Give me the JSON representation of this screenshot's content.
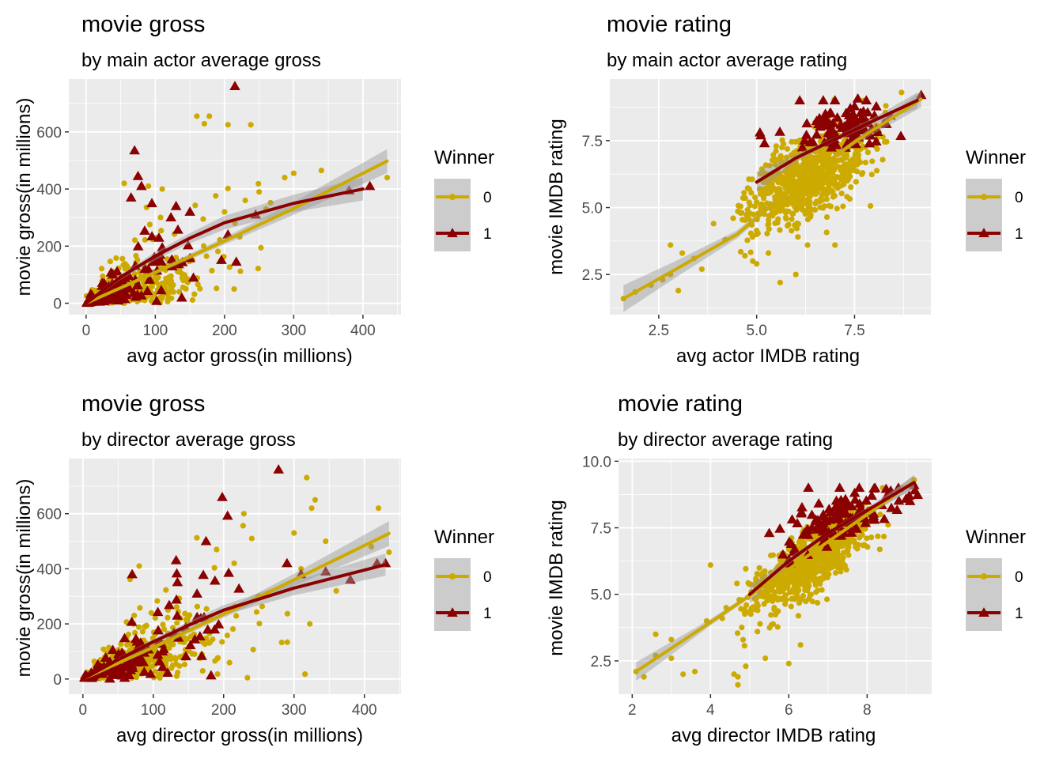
{
  "colors": {
    "winner_0": "#CCAA00",
    "winner_1": "#8B0000",
    "panel_bg": "#EBEBEB",
    "grid": "#FFFFFF",
    "band": "#999999",
    "legend_key_bg": "#CCCCCC"
  },
  "chart_data": [
    {
      "type": "scatter",
      "title": "movie gross",
      "subtitle": "by main actor average gross",
      "xlabel": "avg actor gross(in millions)",
      "ylabel": "movie gross(in millions)",
      "xlim": [
        -25,
        455
      ],
      "ylim": [
        -40,
        785
      ],
      "xticks": [
        0,
        100,
        200,
        300,
        400
      ],
      "xtick_labels": [
        "0",
        "100",
        "200",
        "300",
        "400"
      ],
      "yticks": [
        0,
        200,
        400,
        600
      ],
      "ytick_labels": [
        "0",
        "200",
        "400",
        "600"
      ],
      "legend": {
        "title": "Winner",
        "entries": [
          "0",
          "1"
        ],
        "position": "right"
      },
      "series": [
        {
          "name": "0",
          "marker": "circle",
          "cluster": {
            "n": 560,
            "x_shape": 1.3,
            "x_scale": 45,
            "y_ratio": 0.95,
            "y_sd": 0.65,
            "x_max": 300
          },
          "points": [
            [
              160,
              655
            ],
            [
              178,
              655
            ],
            [
              205,
              625
            ],
            [
              238,
              625
            ],
            [
              300,
              455
            ],
            [
              340,
              465
            ],
            [
              435,
              440
            ],
            [
              90,
              410
            ],
            [
              110,
              400
            ],
            [
              55,
              420
            ],
            [
              250,
              390
            ],
            [
              260,
              330
            ],
            [
              200,
              320
            ],
            [
              215,
              280
            ],
            [
              230,
              360
            ]
          ],
          "trend": [
            [
              0,
              0
            ],
            [
              100,
              108
            ],
            [
              200,
              218
            ],
            [
              300,
              332
            ],
            [
              435,
              498
            ]
          ],
          "band_width": [
            5,
            8,
            12,
            22,
            42
          ]
        },
        {
          "name": "1",
          "marker": "triangle",
          "cluster": {
            "n": 110,
            "x_shape": 1.4,
            "x_scale": 40,
            "y_ratio": 1.3,
            "y_sd": 0.7,
            "x_max": 230
          },
          "points": [
            [
              215,
              760
            ],
            [
              70,
              535
            ],
            [
              75,
              445
            ],
            [
              80,
              410
            ],
            [
              65,
              370
            ],
            [
              95,
              350
            ],
            [
              130,
              340
            ],
            [
              205,
              240
            ],
            [
              245,
              310
            ],
            [
              410,
              410
            ],
            [
              380,
              395
            ],
            [
              150,
              320
            ]
          ],
          "trend": [
            [
              0,
              0
            ],
            [
              50,
              92
            ],
            [
              100,
              165
            ],
            [
              150,
              228
            ],
            [
              200,
              282
            ],
            [
              300,
              350
            ],
            [
              400,
              400
            ]
          ],
          "band_width": [
            6,
            10,
            14,
            18,
            24,
            30,
            40
          ]
        }
      ]
    },
    {
      "type": "scatter",
      "title": "movie rating",
      "subtitle": "by main actor average rating",
      "xlabel": "avg actor IMDB rating",
      "ylabel": "movie IMDB rating",
      "xlim": [
        1.25,
        9.45
      ],
      "ylim": [
        1.0,
        9.8
      ],
      "xticks": [
        2.5,
        5.0,
        7.5
      ],
      "xtick_labels": [
        "2.5",
        "5.0",
        "7.5"
      ],
      "yticks": [
        2.5,
        5.0,
        7.5
      ],
      "ytick_labels": [
        "2.5",
        "5.0",
        "7.5"
      ],
      "legend": {
        "title": "Winner",
        "entries": [
          "0",
          "1"
        ],
        "position": "right"
      },
      "series": [
        {
          "name": "0",
          "marker": "circle",
          "cluster": {
            "n": 780,
            "cx": 6.35,
            "cy": 6.2,
            "sx": 0.75,
            "sy": 0.9,
            "rho": 0.55,
            "x_min": 4.5,
            "y_max": 9.3
          },
          "points": [
            [
              1.6,
              1.6
            ],
            [
              1.9,
              1.85
            ],
            [
              2.3,
              2.1
            ],
            [
              2.6,
              2.3
            ],
            [
              2.8,
              2.5
            ],
            [
              3.0,
              1.9
            ],
            [
              3.1,
              3.3
            ],
            [
              3.4,
              3.1
            ],
            [
              3.6,
              2.7
            ],
            [
              2.8,
              3.6
            ],
            [
              3.9,
              4.4
            ],
            [
              4.2,
              3.8
            ],
            [
              4.4,
              4.6
            ],
            [
              4.7,
              3.2
            ],
            [
              4.9,
              3.0
            ],
            [
              5.0,
              2.9
            ],
            [
              5.3,
              3.3
            ],
            [
              5.6,
              2.2
            ],
            [
              6.0,
              2.5
            ],
            [
              6.3,
              3.6
            ],
            [
              7.0,
              3.6
            ],
            [
              5.0,
              4.0
            ],
            [
              8.7,
              9.3
            ],
            [
              9.2,
              9.2
            ],
            [
              8.3,
              8.8
            ]
          ],
          "trend": [
            [
              1.6,
              1.6
            ],
            [
              3.0,
              2.75
            ],
            [
              4.5,
              4.0
            ],
            [
              6.0,
              5.85
            ],
            [
              7.5,
              7.45
            ],
            [
              9.2,
              9.05
            ]
          ],
          "band_width": [
            0.5,
            0.3,
            0.15,
            0.06,
            0.1,
            0.3
          ]
        },
        {
          "name": "1",
          "marker": "triangle",
          "cluster": {
            "n": 95,
            "cx": 7.2,
            "cy": 8.0,
            "sx": 0.8,
            "sy": 0.45,
            "rho": 0.5,
            "x_min": 5.0,
            "y_max": 9.1
          },
          "points": [
            [
              6.1,
              9.0
            ],
            [
              6.7,
              9.0
            ],
            [
              7.0,
              9.0
            ],
            [
              7.8,
              9.0
            ],
            [
              9.2,
              9.2
            ],
            [
              5.2,
              7.4
            ]
          ],
          "trend": [
            [
              5.0,
              5.95
            ],
            [
              6.0,
              6.85
            ],
            [
              7.0,
              7.55
            ],
            [
              8.0,
              8.25
            ],
            [
              9.1,
              9.0
            ]
          ],
          "band_width": [
            0.4,
            0.15,
            0.08,
            0.12,
            0.3
          ]
        }
      ]
    },
    {
      "type": "scatter",
      "title": "movie gross",
      "subtitle": "by director average gross",
      "xlabel": "avg director gross(in millions)",
      "ylabel": "movie gross(in millions)",
      "xlim": [
        -20,
        452
      ],
      "ylim": [
        -55,
        800
      ],
      "xticks": [
        0,
        100,
        200,
        300,
        400
      ],
      "xtick_labels": [
        "0",
        "100",
        "200",
        "300",
        "400"
      ],
      "yticks": [
        0,
        200,
        400,
        600
      ],
      "ytick_labels": [
        "0",
        "200",
        "400",
        "600"
      ],
      "legend": {
        "title": "Winner",
        "entries": [
          "0",
          "1"
        ],
        "position": "right"
      },
      "series": [
        {
          "name": "0",
          "marker": "circle",
          "cluster": {
            "n": 620,
            "x_shape": 1.6,
            "x_scale": 45,
            "y_ratio": 1.05,
            "y_sd": 0.55,
            "x_max": 330
          },
          "points": [
            [
              330,
              650
            ],
            [
              325,
              620
            ],
            [
              420,
              620
            ],
            [
              435,
              460
            ],
            [
              410,
              480
            ],
            [
              345,
              500
            ],
            [
              300,
              530
            ],
            [
              240,
              510
            ],
            [
              190,
              470
            ],
            [
              215,
              420
            ],
            [
              310,
              400
            ],
            [
              360,
              320
            ],
            [
              250,
              300
            ],
            [
              80,
              410
            ]
          ],
          "trend": [
            [
              0,
              0
            ],
            [
              100,
              115
            ],
            [
              200,
              235
            ],
            [
              300,
              360
            ],
            [
              435,
              528
            ]
          ],
          "band_width": [
            5,
            8,
            12,
            22,
            45
          ]
        },
        {
          "name": "1",
          "marker": "triangle",
          "cluster": {
            "n": 130,
            "x_shape": 1.8,
            "x_scale": 45,
            "y_ratio": 1.3,
            "y_sd": 0.5,
            "x_max": 260
          },
          "points": [
            [
              278,
              760
            ],
            [
              198,
              660
            ],
            [
              175,
              500
            ],
            [
              290,
              420
            ],
            [
              310,
              380
            ],
            [
              345,
              390
            ],
            [
              380,
              360
            ],
            [
              418,
              420
            ],
            [
              430,
              420
            ],
            [
              70,
              380
            ]
          ],
          "trend": [
            [
              0,
              0
            ],
            [
              50,
              70
            ],
            [
              100,
              135
            ],
            [
              150,
              195
            ],
            [
              200,
              250
            ],
            [
              300,
              330
            ],
            [
              430,
              415
            ]
          ],
          "band_width": [
            5,
            8,
            10,
            14,
            18,
            26,
            40
          ]
        }
      ]
    },
    {
      "type": "scatter",
      "title": "movie rating",
      "subtitle": "by director average rating",
      "xlabel": "avg director IMDB rating",
      "ylabel": "movie IMDB rating",
      "xlim": [
        1.65,
        9.65
      ],
      "ylim": [
        1.25,
        10.1
      ],
      "xticks": [
        2,
        4,
        6,
        8
      ],
      "xtick_labels": [
        "2",
        "4",
        "6",
        "8"
      ],
      "yticks": [
        2.5,
        5.0,
        7.5,
        10.0
      ],
      "ytick_labels": [
        "2.5",
        "5.0",
        "7.5",
        "10.0"
      ],
      "legend": {
        "title": "Winner",
        "entries": [
          "0",
          "1"
        ],
        "position": "right"
      },
      "series": [
        {
          "name": "0",
          "marker": "circle",
          "cluster": {
            "n": 820,
            "cx": 6.5,
            "cy": 6.2,
            "sx": 0.7,
            "sy": 0.85,
            "rho": 0.75,
            "x_min": 4.6,
            "y_max": 9.3
          },
          "points": [
            [
              2.1,
              2.1
            ],
            [
              2.3,
              1.9
            ],
            [
              2.6,
              2.7
            ],
            [
              2.6,
              3.5
            ],
            [
              3.0,
              3.3
            ],
            [
              3.0,
              2.6
            ],
            [
              3.3,
              2.0
            ],
            [
              3.6,
              2.1
            ],
            [
              3.9,
              4.0
            ],
            [
              4.0,
              6.1
            ],
            [
              4.3,
              4.1
            ],
            [
              4.4,
              4.5
            ],
            [
              4.9,
              2.3
            ],
            [
              4.6,
              2.0
            ],
            [
              4.7,
              1.6
            ],
            [
              4.7,
              1.9
            ],
            [
              5.2,
              3.6
            ],
            [
              5.4,
              2.6
            ],
            [
              6.0,
              2.4
            ],
            [
              6.3,
              3.1
            ],
            [
              9.2,
              9.3
            ],
            [
              8.4,
              9.0
            ],
            [
              8.9,
              9.0
            ]
          ],
          "trend": [
            [
              2.1,
              2.1
            ],
            [
              4.0,
              3.95
            ],
            [
              6.0,
              5.95
            ],
            [
              8.0,
              8.0
            ],
            [
              9.2,
              9.25
            ]
          ],
          "band_width": [
            0.35,
            0.12,
            0.05,
            0.08,
            0.25
          ]
        },
        {
          "name": "1",
          "marker": "triangle",
          "cluster": {
            "n": 110,
            "cx": 7.3,
            "cy": 7.9,
            "sx": 0.75,
            "sy": 0.55,
            "rho": 0.6,
            "x_min": 5.0,
            "y_max": 9.05
          },
          "points": [
            [
              6.5,
              9.0
            ],
            [
              7.3,
              9.0
            ],
            [
              7.8,
              9.0
            ],
            [
              8.2,
              9.0
            ],
            [
              8.8,
              9.0
            ],
            [
              9.2,
              9.1
            ],
            [
              5.5,
              7.3
            ]
          ],
          "trend": [
            [
              5.0,
              5.0
            ],
            [
              6.0,
              6.25
            ],
            [
              7.0,
              7.3
            ],
            [
              8.0,
              8.15
            ],
            [
              9.2,
              9.2
            ]
          ],
          "band_width": [
            0.35,
            0.12,
            0.08,
            0.1,
            0.25
          ]
        }
      ]
    }
  ]
}
